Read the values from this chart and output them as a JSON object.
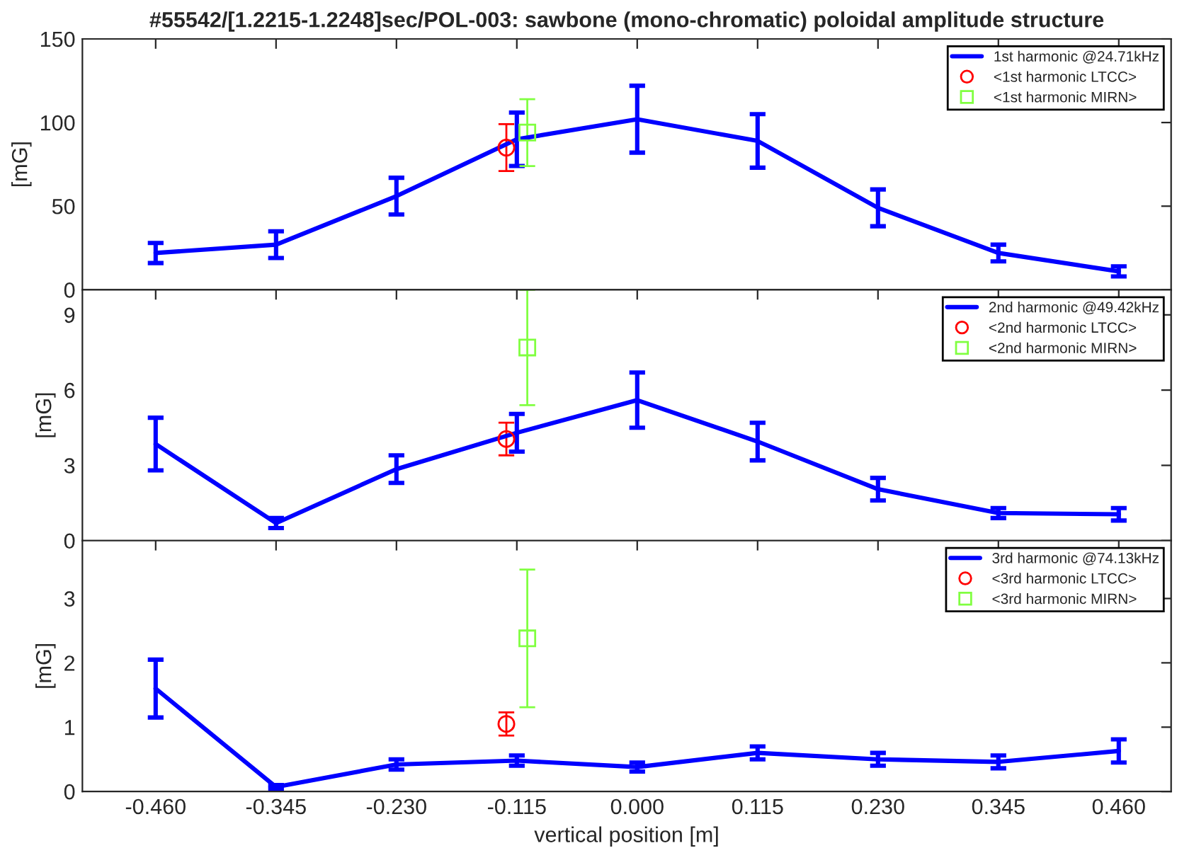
{
  "chart_data": [
    {
      "type": "line",
      "title": "#55542/[1.2215-1.2248]sec/POL-003: sawbone (mono-chromatic) poloidal amplitude structure",
      "ylabel": "[mG]",
      "xlim": [
        -0.53,
        0.51
      ],
      "xticks": [
        {
          "value": -0.46,
          "label": null
        },
        {
          "value": -0.345,
          "label": null
        },
        {
          "value": -0.23,
          "label": null
        },
        {
          "value": -0.115,
          "label": null
        },
        {
          "value": 0,
          "label": null
        },
        {
          "value": 0.115,
          "label": null
        },
        {
          "value": 0.23,
          "label": null
        },
        {
          "value": 0.345,
          "label": null
        },
        {
          "value": 0.46,
          "label": null
        }
      ],
      "ylim": [
        0,
        150
      ],
      "yticks": [
        0,
        50,
        100,
        150
      ],
      "tick_labels": "y",
      "legend": "top right",
      "grid": false,
      "series": [
        {
          "name": "1st harmonic @24.71kHz",
          "color": "#0000ff",
          "marker": "none",
          "x": [
            -0.46,
            -0.345,
            -0.23,
            -0.115,
            0,
            0.115,
            0.23,
            0.345,
            0.46
          ],
          "values": [
            22,
            27,
            56,
            90,
            102,
            89,
            49,
            22,
            11
          ],
          "errors": [
            6,
            8,
            11,
            16,
            20,
            16,
            11,
            5,
            3
          ]
        },
        {
          "name": "<1st harmonic LTCC>",
          "type": "scatter",
          "color": "#ff0000",
          "marker": "circle",
          "x": [
            -0.125
          ],
          "values": [
            85
          ],
          "errors": [
            14
          ]
        },
        {
          "name": "<1st harmonic MIRN>",
          "type": "scatter",
          "color": "#80ff40",
          "marker": "square",
          "x": [
            -0.105
          ],
          "values": [
            94
          ],
          "errors": [
            20
          ]
        }
      ]
    },
    {
      "type": "line",
      "ylabel": "[mG]",
      "xlim": [
        -0.53,
        0.51
      ],
      "xticks": [
        {
          "value": -0.46,
          "label": null
        },
        {
          "value": -0.345,
          "label": null
        },
        {
          "value": -0.23,
          "label": null
        },
        {
          "value": -0.115,
          "label": null
        },
        {
          "value": 0,
          "label": null
        },
        {
          "value": 0.115,
          "label": null
        },
        {
          "value": 0.23,
          "label": null
        },
        {
          "value": 0.345,
          "label": null
        },
        {
          "value": 0.46,
          "label": null
        }
      ],
      "ylim": [
        0,
        10
      ],
      "yticks": [
        0,
        3,
        6,
        9
      ],
      "tick_labels": "y",
      "legend": "top right",
      "grid": false,
      "series": [
        {
          "name": "2nd harmonic @49.42kHz",
          "color": "#0000ff",
          "marker": "none",
          "x": [
            -0.46,
            -0.345,
            -0.23,
            -0.115,
            0,
            0.115,
            0.23,
            0.345,
            0.46
          ],
          "values": [
            3.85,
            0.7,
            2.85,
            4.3,
            5.6,
            3.95,
            2.05,
            1.1,
            1.05
          ],
          "errors": [
            1.05,
            0.2,
            0.55,
            0.75,
            1.1,
            0.75,
            0.45,
            0.2,
            0.25
          ]
        },
        {
          "name": "<2nd harmonic LTCC>",
          "type": "scatter",
          "color": "#ff0000",
          "marker": "circle",
          "x": [
            -0.125
          ],
          "values": [
            4.05
          ],
          "errors": [
            0.65
          ]
        },
        {
          "name": "<2nd harmonic MIRN>",
          "type": "scatter",
          "color": "#80ff40",
          "marker": "square",
          "x": [
            -0.105
          ],
          "values": [
            7.7
          ],
          "errors": [
            2.3
          ]
        }
      ]
    },
    {
      "type": "line",
      "ylabel": "[mG]",
      "xlabel": "vertical position [m]",
      "xlim": [
        -0.53,
        0.51
      ],
      "xticks": [
        {
          "value": -0.46,
          "label": "-0.460"
        },
        {
          "value": -0.345,
          "label": "-0.345"
        },
        {
          "value": -0.23,
          "label": "-0.230"
        },
        {
          "value": -0.115,
          "label": "-0.115"
        },
        {
          "value": 0,
          "label": "0.000"
        },
        {
          "value": 0.115,
          "label": "0.115"
        },
        {
          "value": 0.23,
          "label": "0.230"
        },
        {
          "value": 0.345,
          "label": "0.345"
        },
        {
          "value": 0.46,
          "label": "0.460"
        }
      ],
      "ylim": [
        0,
        3.9
      ],
      "yticks": [
        0,
        1,
        2,
        3
      ],
      "legend": "top right",
      "grid": false,
      "series": [
        {
          "name": "3rd harmonic @74.13kHz",
          "color": "#0000ff",
          "marker": "none",
          "x": [
            -0.46,
            -0.345,
            -0.23,
            -0.115,
            0,
            0.115,
            0.23,
            0.345,
            0.46
          ],
          "values": [
            1.6,
            0.07,
            0.42,
            0.48,
            0.38,
            0.6,
            0.5,
            0.46,
            0.63
          ],
          "errors": [
            0.45,
            0.03,
            0.08,
            0.08,
            0.07,
            0.1,
            0.1,
            0.1,
            0.18
          ]
        },
        {
          "name": "<3rd harmonic LTCC>",
          "type": "scatter",
          "color": "#ff0000",
          "marker": "circle",
          "x": [
            -0.125
          ],
          "values": [
            1.05
          ],
          "errors": [
            0.18
          ]
        },
        {
          "name": "<3rd harmonic MIRN>",
          "type": "scatter",
          "color": "#80ff40",
          "marker": "square",
          "x": [
            -0.105
          ],
          "values": [
            2.38
          ],
          "errors": [
            1.07
          ]
        }
      ]
    }
  ]
}
